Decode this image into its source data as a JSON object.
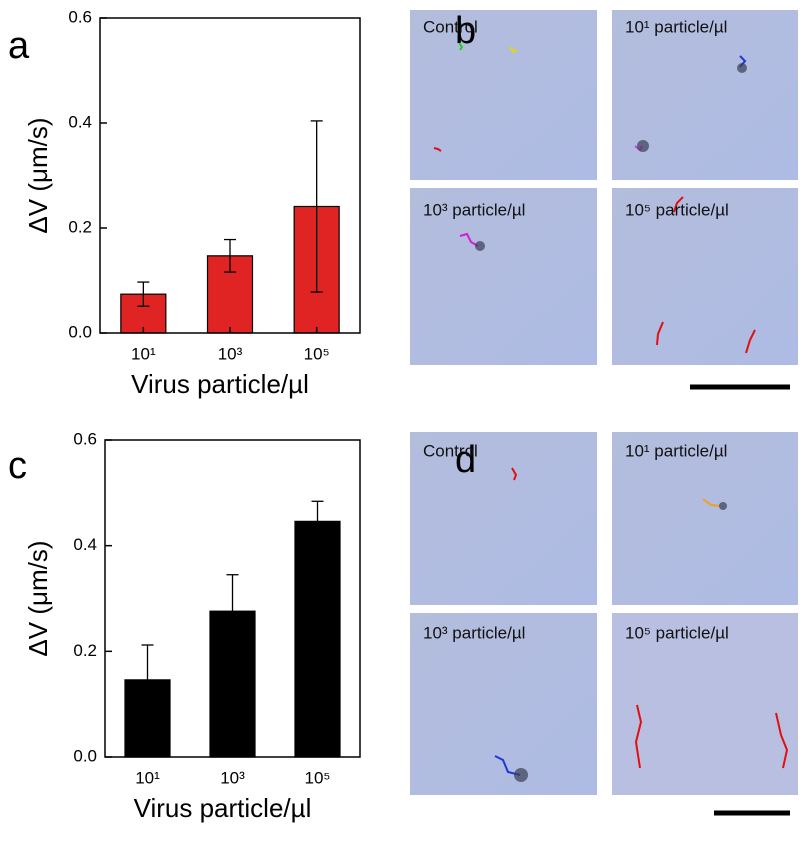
{
  "chart_data": [
    {
      "type": "bar",
      "panel": "a",
      "color": "#e02424",
      "ylabel": "ΔV (μm/s)",
      "xlabel": "Virus particle/µl",
      "categories": [
        "10¹",
        "10³",
        "10⁵"
      ],
      "values": [
        0.074,
        0.147,
        0.241
      ],
      "errors": [
        0.023,
        0.031,
        0.163
      ],
      "ylim": [
        0,
        0.6
      ],
      "yticks": [
        {
          "value": 0,
          "label": "0.0"
        },
        0.2,
        0.4,
        0.6
      ]
    },
    {
      "type": "bar",
      "panel": "c",
      "color": "#000000",
      "ylabel": "ΔV (μm/s)",
      "xlabel": "Virus particle/µl",
      "categories": [
        "10¹",
        "10³",
        "10⁵"
      ],
      "values": [
        0.146,
        0.276,
        0.446
      ],
      "errors": [
        0.066,
        0.069,
        0.038
      ],
      "ylim": [
        0,
        0.6
      ],
      "yticks": [
        {
          "value": 0,
          "label": "0.0"
        },
        0.2,
        0.4,
        0.6
      ]
    }
  ],
  "image_panels": [
    {
      "panel": "b",
      "labels": [
        "Control",
        "10¹ particle/µl",
        "10³ particle/µl",
        "10⁵ particle/µl"
      ]
    },
    {
      "panel": "d",
      "labels": [
        "Control",
        "10¹ particle/µl",
        "10³ particle/µl",
        "10⁵ particle/µl"
      ]
    }
  ]
}
